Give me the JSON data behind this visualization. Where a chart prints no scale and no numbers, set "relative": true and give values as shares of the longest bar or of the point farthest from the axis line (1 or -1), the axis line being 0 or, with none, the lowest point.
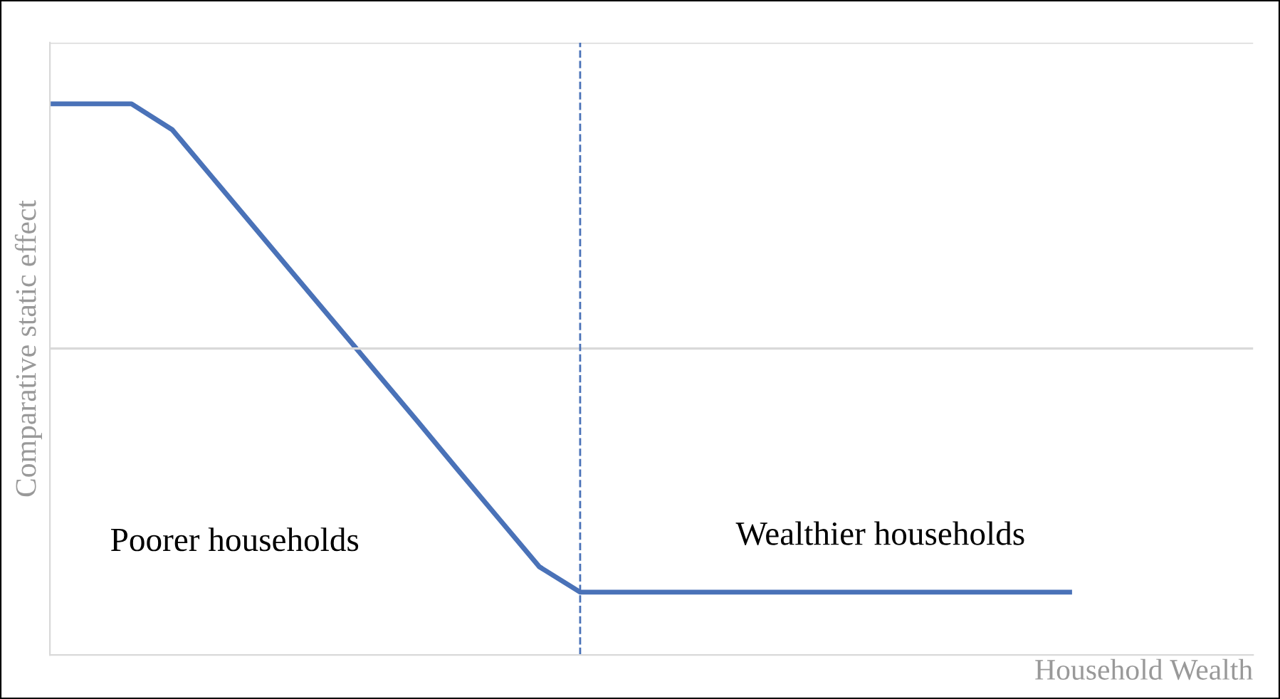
{
  "chart_data": {
    "type": "line",
    "relative": true,
    "xlabel": "Household Wealth",
    "ylabel": "Comparative static effect",
    "categories": [
      null,
      null,
      null,
      null,
      null,
      null,
      null,
      null,
      null,
      null,
      null,
      null,
      null,
      null,
      null,
      null,
      null,
      null,
      null,
      null,
      null,
      null,
      null,
      null,
      null,
      null
    ],
    "series": [
      {
        "color": "#4a72b8",
        "values": [
          1,
          1,
          1,
          0.953,
          0.865,
          0.777,
          0.689,
          0.601,
          0.513,
          0.425,
          0.336,
          0.248,
          0.16,
          0.114,
          0.114,
          0.114,
          0.114,
          0.114,
          0.114,
          0.114,
          0.114,
          0.114,
          0.114,
          0.114,
          0.114,
          0.114
        ]
      }
    ],
    "ref_lines": [
      {
        "axis": "y",
        "value": 0.556,
        "color": "#d9d9d9",
        "line_style": "solid"
      },
      {
        "axis": "y",
        "value": 1.111,
        "color": "#d9d9d9",
        "line_style": "solid"
      }
    ],
    "annotations": [
      "Poorer households",
      "Wealthier households"
    ],
    "marker": "none",
    "line_style": "solid"
  }
}
